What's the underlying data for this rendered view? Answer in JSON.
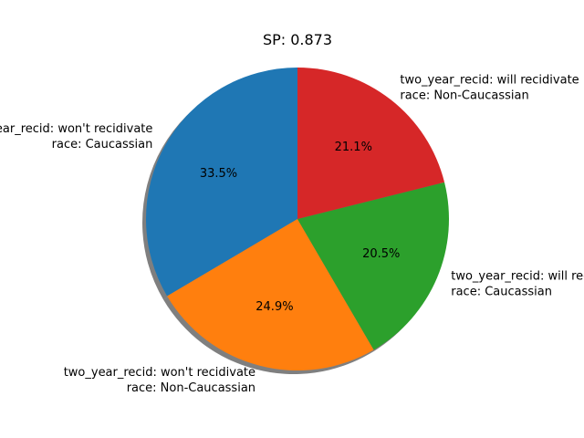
{
  "chart_data": {
    "type": "pie",
    "title": "SP: 0.873",
    "shadow": true,
    "start_angle_deg": 90,
    "direction": "counterclockwise",
    "slices": [
      {
        "label_lines": [
          "two_year_recid: won't recidivate",
          "race: Caucassian"
        ],
        "value": 33.5,
        "pct_label": "33.5%",
        "color": "#1f77b4"
      },
      {
        "label_lines": [
          "two_year_recid: won't recidivate",
          "race: Non-Caucassian"
        ],
        "value": 24.9,
        "pct_label": "24.9%",
        "color": "#ff7f0e"
      },
      {
        "label_lines": [
          "two_year_recid: will recidivate",
          "race: Caucassian"
        ],
        "value": 20.5,
        "pct_label": "20.5%",
        "color": "#2ca02c"
      },
      {
        "label_lines": [
          "two_year_recid: will recidivate",
          "race: Non-Caucassian"
        ],
        "value": 21.1,
        "pct_label": "21.1%",
        "color": "#d62728"
      }
    ]
  }
}
